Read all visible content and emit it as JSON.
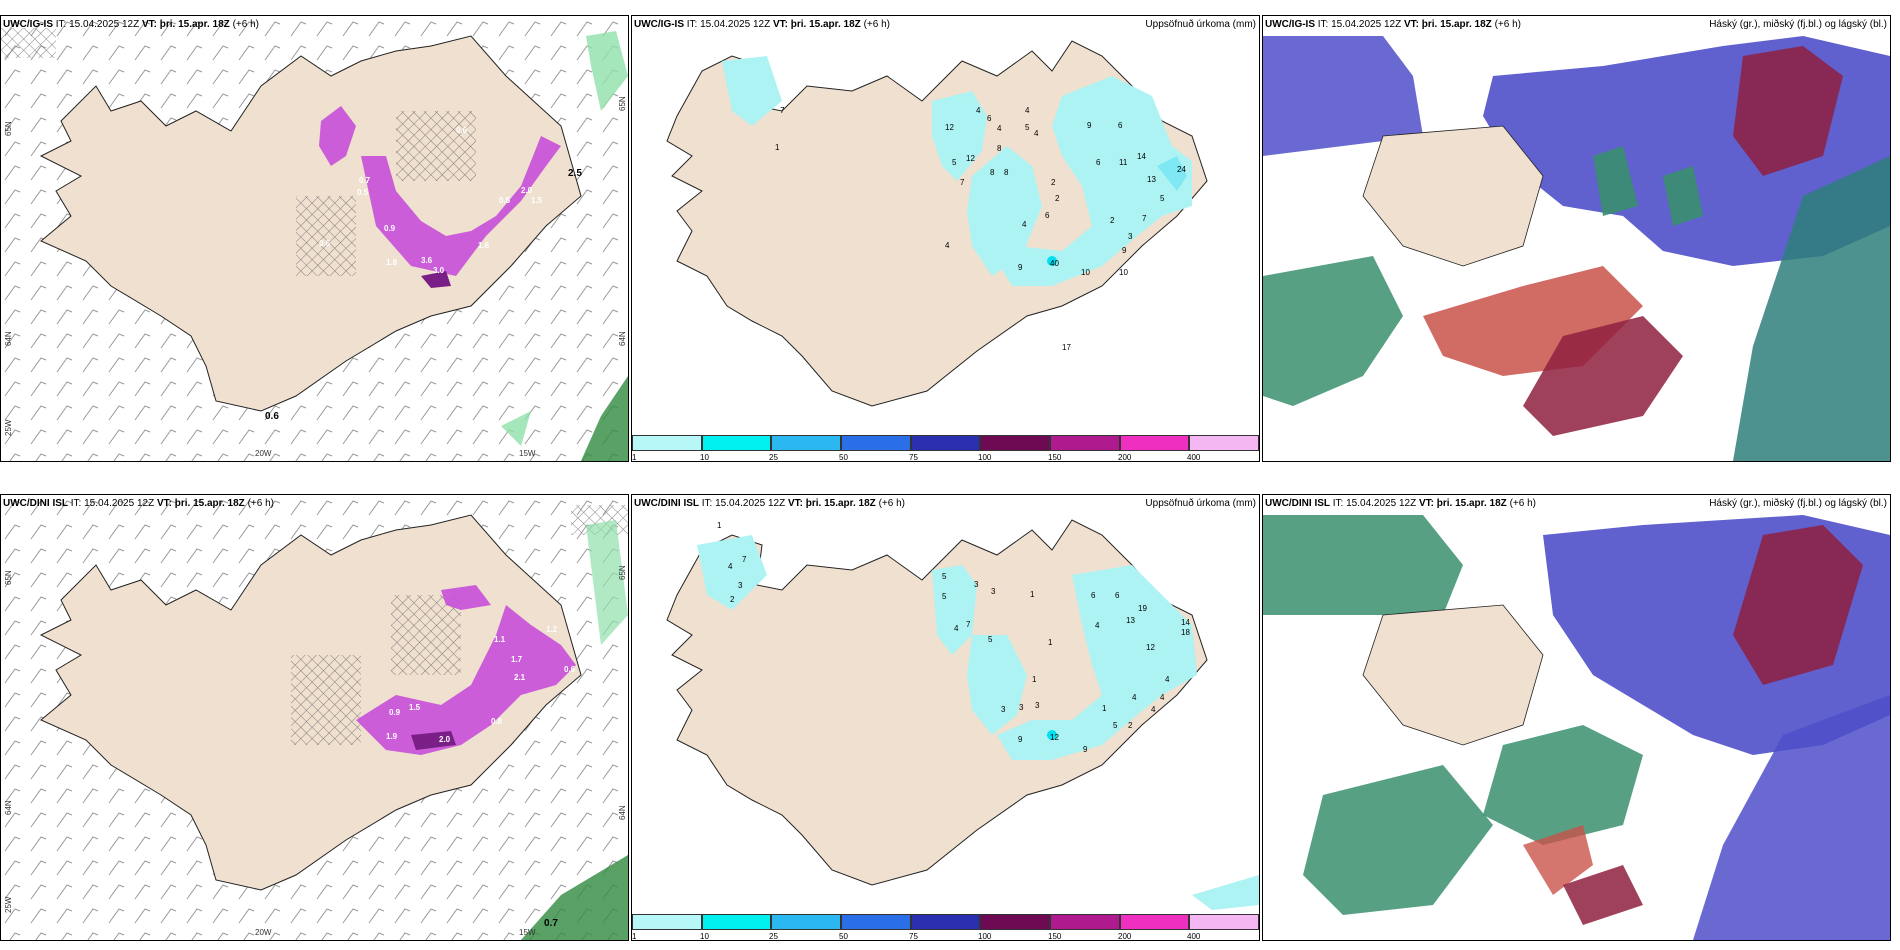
{
  "colors": {
    "land": "#efe0cf",
    "precip_light": "#aef3f3",
    "magenta": "#c64fd8",
    "magenta_dark": "#7a1f85",
    "green": "#8fe0a9",
    "blue": "#4f4fc9",
    "red": "#c9524a",
    "teal": "#2e7f7a"
  },
  "panels": {
    "top_left": {
      "model": "UWC/IG-IS",
      "it_label": "IT:",
      "it_value": "15.04.2025 12Z",
      "vt_label": "VT:",
      "vt_value": "þri. 15.apr. 18Z",
      "lead": "(+6 h)",
      "lat_label_1": "65N",
      "lat_label_2": "64N",
      "lon_label_1": "25W",
      "lon_label_2": "20W",
      "lon_label_3": "15W",
      "lat_right": "65N",
      "lat_right_2": "64N",
      "max_label": "0.6",
      "values": [
        "0.6",
        "0.7",
        "0.5",
        "0.9",
        "1.8",
        "3.6",
        "3.0",
        "1.6",
        "0.5",
        "0.6",
        "2.0",
        "1.5",
        "2.5"
      ]
    },
    "top_mid": {
      "model": "UWC/IG-IS",
      "it_label": "IT:",
      "it_value": "15.04.2025 12Z",
      "vt_label": "VT:",
      "vt_value": "þri. 15.apr. 18Z",
      "lead": "(+6 h)",
      "title_right": "Uppsöfnuð úrkoma (mm)",
      "numbers": [
        "7",
        "1",
        "12",
        "5",
        "12",
        "7",
        "8",
        "8",
        "8",
        "4",
        "6",
        "4",
        "4",
        "5",
        "4",
        "9",
        "6",
        "11",
        "14",
        "24",
        "13",
        "6",
        "5",
        "2",
        "2",
        "6",
        "4",
        "7",
        "2",
        "3",
        "9",
        "9",
        "10",
        "40",
        "17",
        "4",
        "10"
      ]
    },
    "top_right": {
      "model": "UWC/IG-IS",
      "it_label": "IT:",
      "it_value": "15.04.2025 12Z",
      "vt_label": "VT:",
      "vt_value": "þri. 15.apr. 18Z",
      "lead": "(+6 h)",
      "title_right": "Háský (gr.), miðský (fj.bl.) og lágský (bl.)"
    },
    "bottom_left": {
      "model": "UWC/DINI ISL",
      "it_label": "IT:",
      "it_value": "15.04.2025 12Z",
      "vt_label": "VT:",
      "vt_value": "þri. 15.apr. 18Z",
      "lead": "(+6 h)",
      "lat_label_1": "65N",
      "lat_label_2": "64N",
      "lon_label_1": "25W",
      "lon_label_2": "20W",
      "lon_label_3": "15W",
      "lat_right": "65N",
      "lat_right_2": "64N",
      "max_label": "0.7",
      "values": [
        "1.9",
        "2.0",
        "0.9",
        "1.5",
        "1.1",
        "1.7",
        "0.8",
        "2.1",
        "0.6",
        "1.2"
      ]
    },
    "bottom_mid": {
      "model": "UWC/DINI ISL",
      "it_label": "IT:",
      "it_value": "15.04.2025 12Z",
      "vt_label": "VT:",
      "vt_value": "þri. 15.apr. 18Z",
      "lead": "(+6 h)",
      "title_right": "Uppsöfnuð úrkoma (mm)",
      "numbers": [
        "1",
        "4",
        "7",
        "3",
        "2",
        "5",
        "5",
        "7",
        "4",
        "5",
        "1",
        "3",
        "3",
        "1",
        "6",
        "6",
        "19",
        "4",
        "13",
        "14",
        "18",
        "12",
        "4",
        "1",
        "4",
        "3",
        "3",
        "3",
        "1",
        "2",
        "5",
        "9",
        "9",
        "12",
        "4",
        "4"
      ]
    },
    "bottom_right": {
      "model": "UWC/DINI ISL",
      "it_label": "IT:",
      "it_value": "15.04.2025 12Z",
      "vt_label": "VT:",
      "vt_value": "þri. 15.apr. 18Z",
      "lead": "(+6 h)",
      "title_right": "Háský (gr.), miðský (fj.bl.) og lágský (bl.)"
    }
  },
  "colorbar": {
    "ticks": [
      "1",
      "10",
      "25",
      "50",
      "75",
      "100",
      "150",
      "200",
      "400"
    ],
    "colors": [
      "#b8f7f7",
      "#00f0f0",
      "#2bb7f0",
      "#2a6ee8",
      "#2a2fb0",
      "#6e0a54",
      "#b01a8f",
      "#ee2fc0",
      "#f5b7f2"
    ]
  }
}
